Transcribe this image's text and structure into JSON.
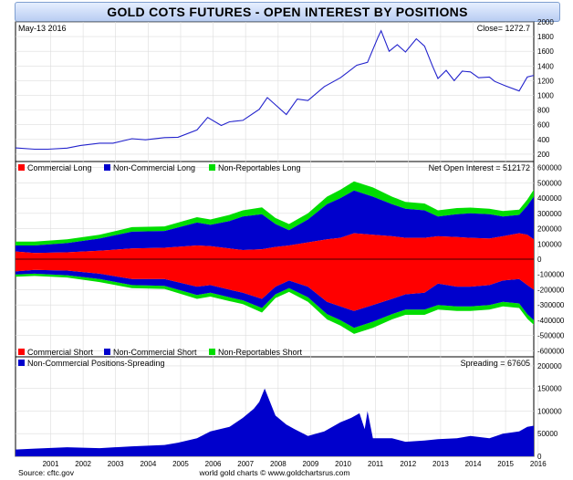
{
  "header": {
    "title": "GOLD COTS FUTURES - OPEN INTEREST BY POSITIONS"
  },
  "footer": {
    "source": "Source: cftc.gov",
    "credit": "world gold charts © www.goldchartsrus.com"
  },
  "colors": {
    "commercial": "#ff0000",
    "non_commercial": "#0000cc",
    "non_reportable": "#00dd00",
    "price_line": "#2222cc",
    "grid": "#dddddd",
    "frame": "#000000"
  },
  "chart_data": [
    {
      "type": "line",
      "panel": "price",
      "date_label": "May-13  2016",
      "close_label": "Close= 1272.7",
      "xlim": [
        "2000-06-01",
        "2016-05-13"
      ],
      "ylim": [
        100,
        2000
      ],
      "y_ticks": [
        200,
        400,
        600,
        800,
        1000,
        1200,
        1400,
        1600,
        1800,
        2000
      ],
      "grid": true,
      "series": [
        {
          "name": "",
          "x": [
            "2000-06-01",
            "2001-01-01",
            "2001-06-01",
            "2002-01-01",
            "2002-06-01",
            "2003-01-01",
            "2003-06-01",
            "2004-01-01",
            "2004-06-01",
            "2005-01-01",
            "2005-06-01",
            "2006-01-01",
            "2006-05-01",
            "2006-10-01",
            "2007-01-01",
            "2007-06-01",
            "2007-12-01",
            "2008-03-01",
            "2008-10-01",
            "2009-02-01",
            "2009-06-01",
            "2009-12-01",
            "2010-06-01",
            "2010-12-01",
            "2011-04-01",
            "2011-08-01",
            "2011-09-01",
            "2011-12-01",
            "2012-03-01",
            "2012-06-01",
            "2012-10-01",
            "2013-01-01",
            "2013-04-01",
            "2013-06-01",
            "2013-09-01",
            "2013-12-01",
            "2014-03-01",
            "2014-06-01",
            "2014-09-01",
            "2015-01-01",
            "2015-03-01",
            "2015-07-01",
            "2015-12-01",
            "2016-03-01",
            "2016-05-13"
          ],
          "values": [
            285,
            268,
            268,
            282,
            318,
            350,
            350,
            410,
            395,
            425,
            430,
            530,
            700,
            590,
            640,
            660,
            810,
            970,
            740,
            950,
            930,
            1120,
            1240,
            1410,
            1450,
            1800,
            1880,
            1600,
            1690,
            1590,
            1770,
            1670,
            1400,
            1230,
            1340,
            1200,
            1330,
            1320,
            1240,
            1250,
            1190,
            1130,
            1060,
            1250,
            1272.7
          ]
        }
      ]
    },
    {
      "type": "area",
      "panel": "open-interest",
      "net_label": "Net Open Interest = 512172",
      "legend_top": [
        "Commercial Long",
        "Non-Commercial Long",
        "Non-Reportables Long"
      ],
      "legend_bottom": [
        "Commercial Short",
        "Non-Commercial Short",
        "Non-Reportables Short"
      ],
      "xlim": [
        "2000-06-01",
        "2016-05-13"
      ],
      "ylim": [
        -640000,
        640000
      ],
      "y_ticks": [
        600000,
        500000,
        400000,
        300000,
        200000,
        100000,
        0,
        -100000,
        -200000,
        -300000,
        -400000,
        -500000,
        -600000
      ],
      "y_tick_labels": [
        "600000",
        "500000",
        "400000",
        "300000",
        "200000",
        "100000",
        "0",
        "-100000",
        "-200000",
        "-300000",
        "-400000",
        "-500000",
        "-600000"
      ],
      "x": [
        "2000-06-01",
        "2001-01-01",
        "2002-01-01",
        "2003-01-01",
        "2004-01-01",
        "2005-01-01",
        "2006-01-01",
        "2006-06-01",
        "2007-01-01",
        "2007-06-01",
        "2008-01-01",
        "2008-06-01",
        "2008-11-01",
        "2009-06-01",
        "2010-01-01",
        "2010-06-01",
        "2010-11-01",
        "2011-06-01",
        "2012-01-01",
        "2012-06-01",
        "2013-01-01",
        "2013-06-01",
        "2014-01-01",
        "2014-06-01",
        "2015-01-01",
        "2015-06-01",
        "2015-12-01",
        "2016-03-01",
        "2016-05-13"
      ],
      "series": [
        {
          "name": "Commercial Long",
          "values": [
            50000,
            40000,
            45000,
            55000,
            70000,
            75000,
            90000,
            85000,
            70000,
            60000,
            65000,
            80000,
            90000,
            110000,
            130000,
            140000,
            170000,
            160000,
            150000,
            140000,
            140000,
            150000,
            145000,
            140000,
            135000,
            150000,
            170000,
            160000,
            130000
          ]
        },
        {
          "name": "Non-Commercial Long",
          "values": [
            40000,
            50000,
            60000,
            80000,
            110000,
            110000,
            150000,
            140000,
            180000,
            220000,
            230000,
            150000,
            100000,
            150000,
            230000,
            260000,
            280000,
            250000,
            210000,
            190000,
            180000,
            130000,
            150000,
            160000,
            160000,
            130000,
            120000,
            190000,
            280000
          ]
        },
        {
          "name": "Non-Reportables Long",
          "values": [
            25000,
            25000,
            25000,
            25000,
            30000,
            30000,
            35000,
            35000,
            40000,
            40000,
            45000,
            40000,
            40000,
            40000,
            50000,
            55000,
            60000,
            60000,
            50000,
            45000,
            45000,
            40000,
            40000,
            38000,
            35000,
            35000,
            35000,
            40000,
            45000
          ]
        },
        {
          "name": "Commercial Short",
          "values": [
            -80000,
            -70000,
            -75000,
            -95000,
            -130000,
            -130000,
            -180000,
            -170000,
            -200000,
            -220000,
            -260000,
            -180000,
            -140000,
            -180000,
            -280000,
            -310000,
            -340000,
            -300000,
            -260000,
            -230000,
            -220000,
            -160000,
            -180000,
            -180000,
            -170000,
            -140000,
            -130000,
            -170000,
            -200000
          ]
        },
        {
          "name": "Non-Commercial Short",
          "values": [
            -20000,
            -25000,
            -30000,
            -35000,
            -40000,
            -45000,
            -55000,
            -50000,
            -50000,
            -50000,
            -60000,
            -50000,
            -50000,
            -70000,
            -80000,
            -90000,
            -110000,
            -110000,
            -100000,
            -100000,
            -110000,
            -140000,
            -130000,
            -130000,
            -130000,
            -140000,
            -160000,
            -190000,
            -200000
          ]
        },
        {
          "name": "Non-Reportables Short",
          "values": [
            -15000,
            -15000,
            -15000,
            -20000,
            -20000,
            -20000,
            -25000,
            -25000,
            -25000,
            -25000,
            -30000,
            -25000,
            -25000,
            -30000,
            -35000,
            -35000,
            -40000,
            -40000,
            -35000,
            -35000,
            -35000,
            -30000,
            -30000,
            -30000,
            -30000,
            -30000,
            -30000,
            -30000,
            -30000
          ]
        }
      ]
    },
    {
      "type": "area",
      "panel": "spreading",
      "legend": [
        "Non-Commercial Positions-Spreading"
      ],
      "spreading_label": "Spreading = 67605",
      "xlim": [
        "2000-06-01",
        "2016-05-13"
      ],
      "ylim": [
        0,
        220000
      ],
      "y_ticks": [
        0,
        50000,
        100000,
        150000,
        200000
      ],
      "y_tick_labels": [
        "0",
        "50000",
        "100000",
        "150000",
        "200000"
      ],
      "x_tick_labels": [
        "2001",
        "2002",
        "2003",
        "2004",
        "2005",
        "2006",
        "2007",
        "2008",
        "2009",
        "2010",
        "2011",
        "2012",
        "2013",
        "2014",
        "2015",
        "2016"
      ],
      "series": [
        {
          "name": "Non-Commercial Positions-Spreading",
          "x": [
            "2000-06-01",
            "2001-01-01",
            "2002-01-01",
            "2003-01-01",
            "2004-01-01",
            "2005-01-01",
            "2005-06-01",
            "2006-01-01",
            "2006-06-01",
            "2007-01-01",
            "2007-06-01",
            "2007-10-01",
            "2007-12-01",
            "2008-02-01",
            "2008-06-01",
            "2008-10-01",
            "2009-01-01",
            "2009-06-01",
            "2009-12-01",
            "2010-06-01",
            "2010-10-01",
            "2011-01-01",
            "2011-03-01",
            "2011-04-01",
            "2011-06-01",
            "2012-01-01",
            "2012-06-01",
            "2013-01-01",
            "2013-06-01",
            "2014-01-01",
            "2014-06-01",
            "2015-01-01",
            "2015-06-01",
            "2015-12-01",
            "2016-03-01",
            "2016-05-13"
          ],
          "values": [
            15000,
            17000,
            20000,
            18000,
            22000,
            25000,
            30000,
            40000,
            55000,
            65000,
            85000,
            105000,
            120000,
            150000,
            90000,
            70000,
            60000,
            45000,
            55000,
            75000,
            85000,
            95000,
            60000,
            100000,
            40000,
            40000,
            32000,
            35000,
            38000,
            40000,
            45000,
            40000,
            50000,
            55000,
            65000,
            67605
          ]
        }
      ]
    }
  ]
}
